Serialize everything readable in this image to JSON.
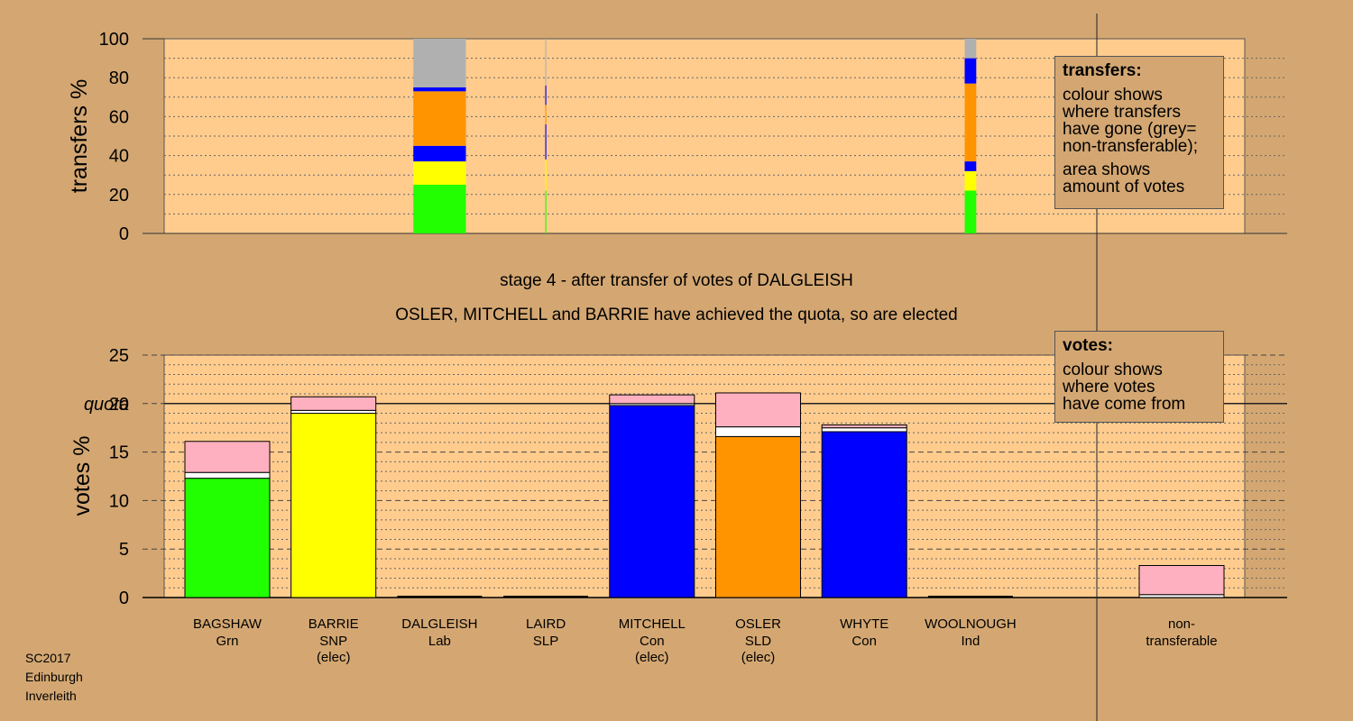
{
  "chart_data": [
    {
      "type": "bar",
      "name": "transfers",
      "ylabel": "transfers %",
      "ylim": [
        0,
        100
      ],
      "yticks": [
        0,
        20,
        40,
        60,
        80,
        100
      ],
      "grid": "dotted",
      "columns": [
        {
          "candidate": "DALGLEISH",
          "width_share": 1.0,
          "segments": [
            {
              "to": "BAGSHAW",
              "color": "#22ff00",
              "value": 25
            },
            {
              "to": "BARRIE",
              "color": "#ffff00",
              "value": 12
            },
            {
              "to": "MITCHELL",
              "color": "#0000ff",
              "value": 8
            },
            {
              "to": "OSLER",
              "color": "#ff9400",
              "value": 28
            },
            {
              "to": "WHYTE",
              "color": "#0000ff",
              "value": 2
            },
            {
              "to": "non-transferable",
              "color": "#b0b0b0",
              "value": 25
            }
          ]
        },
        {
          "candidate": "LAIRD",
          "width_share": 0.02,
          "segments": [
            {
              "to": "BAGSHAW",
              "color": "#22ff00",
              "value": 22
            },
            {
              "to": "BARRIE",
              "color": "#ffff00",
              "value": 16
            },
            {
              "to": "MITCHELL",
              "color": "#0000ff",
              "value": 18
            },
            {
              "to": "OSLER",
              "color": "#ff9400",
              "value": 10
            },
            {
              "to": "WHYTE",
              "color": "#0000ff",
              "value": 10
            },
            {
              "to": "non-transferable",
              "color": "#b0b0b0",
              "value": 24
            }
          ]
        },
        {
          "candidate": "WOOLNOUGH",
          "width_share": 0.22,
          "segments": [
            {
              "to": "BAGSHAW",
              "color": "#22ff00",
              "value": 22
            },
            {
              "to": "BARRIE",
              "color": "#ffff00",
              "value": 10
            },
            {
              "to": "MITCHELL",
              "color": "#0000ff",
              "value": 5
            },
            {
              "to": "OSLER",
              "color": "#ff9400",
              "value": 40
            },
            {
              "to": "WHYTE",
              "color": "#0000ff",
              "value": 13
            },
            {
              "to": "non-transferable",
              "color": "#b0b0b0",
              "value": 10
            }
          ]
        }
      ]
    },
    {
      "type": "bar",
      "name": "votes",
      "ylabel": "votes %",
      "ylim": [
        0,
        25
      ],
      "yticks": [
        0,
        5,
        10,
        15,
        20,
        25
      ],
      "quota": 20,
      "quota_label": "quota",
      "categories": [
        {
          "name": "BAGSHAW",
          "party": "Grn",
          "elected": false,
          "color": "#22ff00",
          "own": 12.3,
          "white": 0.6,
          "pink": 3.2
        },
        {
          "name": "BARRIE",
          "party": "SNP",
          "elected": true,
          "color": "#ffff00",
          "own": 19.0,
          "white": 0.3,
          "pink": 1.4
        },
        {
          "name": "DALGLEISH",
          "party": "Lab",
          "elected": false,
          "color": "#ff0000",
          "own": 0,
          "white": 0,
          "pink": 0
        },
        {
          "name": "LAIRD",
          "party": "SLP",
          "elected": false,
          "color": "#aa0000",
          "own": 0,
          "white": 0,
          "pink": 0
        },
        {
          "name": "MITCHELL",
          "party": "Con",
          "elected": true,
          "color": "#0000ff",
          "own": 19.8,
          "white": 0.2,
          "pink": 0.9
        },
        {
          "name": "OSLER",
          "party": "SLD",
          "elected": true,
          "color": "#ff9400",
          "own": 16.6,
          "white": 1.0,
          "pink": 3.5
        },
        {
          "name": "WHYTE",
          "party": "Con",
          "elected": false,
          "color": "#0000ff",
          "own": 17.1,
          "white": 0.4,
          "pink": 0.3
        },
        {
          "name": "WOOLNOUGH",
          "party": "Ind",
          "elected": false,
          "color": "#888888",
          "own": 0,
          "white": 0,
          "pink": 0
        }
      ],
      "nontransferable": {
        "label_line1": "non-",
        "label_line2": "transferable",
        "white": 0.3,
        "pink": 3.0
      },
      "elected_label": "(elec)",
      "colors": {
        "transfer_pink": "#ffb0c0",
        "plot_bg": "#ffcc8e",
        "page_bg": "#d4a772"
      }
    }
  ],
  "captions": {
    "stage": "stage 4 - after transfer of votes of DALGLEISH",
    "elected": "OSLER, MITCHELL and BARRIE have achieved the quota, so are elected"
  },
  "legend_transfers": {
    "title": "transfers:",
    "l1": "colour shows",
    "l2": "where transfers",
    "l3": "have gone (grey=",
    "l4": "non-transferable);",
    "l5": "area shows",
    "l6": "amount of votes"
  },
  "legend_votes": {
    "title": "votes:",
    "l1": "colour shows",
    "l2": "where votes",
    "l3": "have come from"
  },
  "footer": {
    "l1": "SC2017",
    "l2": "Edinburgh",
    "l3": "Inverleith"
  }
}
